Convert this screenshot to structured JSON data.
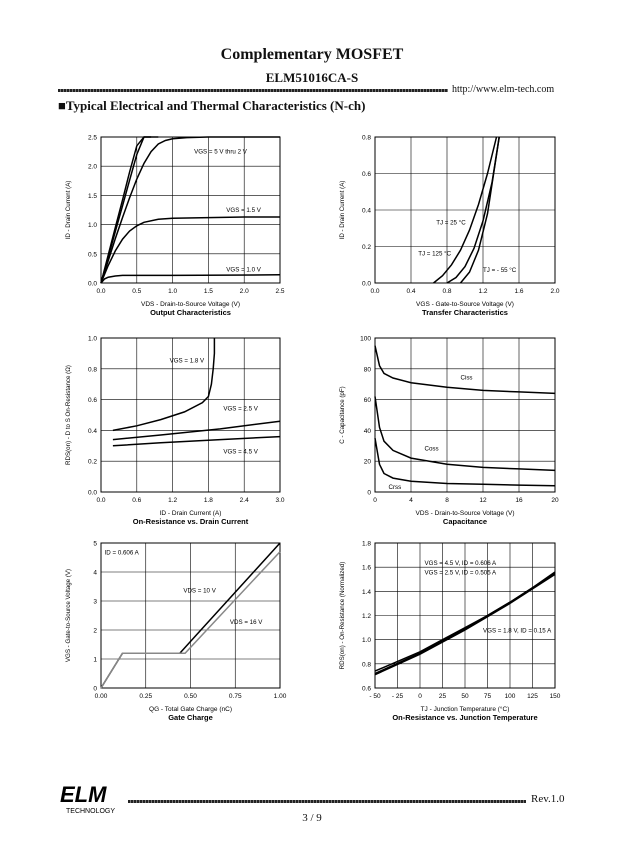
{
  "header": {
    "title": "Complementary MOSFET",
    "part": "ELM51016CA-S",
    "url": "http://www.elm-tech.com"
  },
  "section_title": "■Typical Electrical and Thermal Characteristics (N-ch)",
  "footer": {
    "logo_text": "ELM",
    "logo_sub": "TECHNOLOGY",
    "revision": "Rev.1.0",
    "page": "3 / 9"
  },
  "chart_data": [
    {
      "id": "c1",
      "type": "line",
      "caption": "Output Characteristics",
      "xlabel": "VDS - Drain-to-Source Voltage (V)",
      "ylabel": "ID - Drain Current (A)",
      "xlim": [
        0,
        2.5
      ],
      "ylim": [
        0,
        2.5
      ],
      "xticks": [
        "0.0",
        "0.5",
        "1.0",
        "1.5",
        "2.0",
        "2.5"
      ],
      "yticks": [
        "0.0",
        "0.5",
        "1.0",
        "1.5",
        "2.0",
        "2.5"
      ],
      "grid": true,
      "series": [
        {
          "name": "VGS = 5 V thru 2 V",
          "x": [
            0,
            0.1,
            0.2,
            0.3,
            0.4,
            0.5,
            0.6,
            0.8
          ],
          "y": [
            0,
            0.48,
            0.95,
            1.42,
            1.9,
            2.35,
            2.5,
            2.5
          ]
        },
        {
          "name": "",
          "x": [
            0,
            0.1,
            0.2,
            0.3,
            0.4,
            0.5,
            0.6,
            0.7
          ],
          "y": [
            0,
            0.44,
            0.88,
            1.32,
            1.76,
            2.2,
            2.5,
            2.5
          ]
        },
        {
          "name": "",
          "x": [
            0,
            0.1,
            0.2,
            0.3,
            0.4,
            0.5,
            0.6,
            0.7,
            0.8,
            0.9,
            1.0,
            1.2,
            1.5,
            2.5
          ],
          "y": [
            0,
            0.38,
            0.76,
            1.12,
            1.46,
            1.78,
            2.05,
            2.25,
            2.38,
            2.44,
            2.47,
            2.49,
            2.5,
            2.5
          ]
        },
        {
          "name": "VGS = 1.5 V",
          "x": [
            0,
            0.1,
            0.2,
            0.3,
            0.4,
            0.5,
            0.6,
            0.8,
            1.0,
            1.5,
            2.0,
            2.5
          ],
          "y": [
            0,
            0.3,
            0.55,
            0.75,
            0.89,
            0.98,
            1.04,
            1.09,
            1.11,
            1.12,
            1.13,
            1.13
          ]
        },
        {
          "name": "VGS = 1.0 V",
          "x": [
            0,
            0.05,
            0.1,
            0.2,
            0.3,
            0.5,
            1.0,
            2.5
          ],
          "y": [
            0,
            0.07,
            0.1,
            0.12,
            0.13,
            0.13,
            0.13,
            0.14
          ]
        }
      ],
      "labels": [
        {
          "text": "VGS = 5 V thru 2 V",
          "x": 1.3,
          "y": 2.22
        },
        {
          "text": "VGS = 1.5 V",
          "x": 1.75,
          "y": 1.22
        },
        {
          "text": "VGS = 1.0 V",
          "x": 1.75,
          "y": 0.2
        }
      ]
    },
    {
      "id": "c2",
      "type": "line",
      "caption": "Transfer Characteristics",
      "xlabel": "VGS - Gate-to-Source Voltage (V)",
      "ylabel": "ID - Drain Current (A)",
      "xlim": [
        0,
        2.0
      ],
      "ylim": [
        0,
        0.8
      ],
      "xticks": [
        "0.0",
        "0.4",
        "0.8",
        "1.2",
        "1.6",
        "2.0"
      ],
      "yticks": [
        "0.0",
        "0.2",
        "0.4",
        "0.6",
        "0.8"
      ],
      "grid": true,
      "series": [
        {
          "name": "TJ = 25 °C",
          "x": [
            0.8,
            0.9,
            1.0,
            1.1,
            1.2,
            1.3,
            1.38
          ],
          "y": [
            0,
            0.03,
            0.09,
            0.19,
            0.34,
            0.55,
            0.8
          ]
        },
        {
          "name": "TJ = 125 °C",
          "x": [
            0.65,
            0.75,
            0.85,
            0.95,
            1.05,
            1.15,
            1.25,
            1.35
          ],
          "y": [
            0,
            0.04,
            0.1,
            0.18,
            0.29,
            0.43,
            0.6,
            0.8
          ]
        },
        {
          "name": "TJ = - 55 °C",
          "x": [
            0.95,
            1.05,
            1.15,
            1.25,
            1.38
          ],
          "y": [
            0,
            0.06,
            0.18,
            0.38,
            0.8
          ]
        }
      ],
      "labels": [
        {
          "text": "TJ = 25 °C",
          "x": 0.68,
          "y": 0.32
        },
        {
          "text": "TJ = 125 °C",
          "x": 0.48,
          "y": 0.15
        },
        {
          "text": "TJ = - 55 °C",
          "x": 1.2,
          "y": 0.06
        }
      ]
    },
    {
      "id": "c3",
      "type": "line",
      "caption": "On-Resistance vs. Drain Current",
      "xlabel": "ID - Drain Current (A)",
      "ylabel": "RDS(on) - D to S On-Resistance (Ω)",
      "xlim": [
        0,
        3.0
      ],
      "ylim": [
        0,
        1.0
      ],
      "xticks": [
        "0.0",
        "0.6",
        "1.2",
        "1.8",
        "2.4",
        "3.0"
      ],
      "yticks": [
        "0.0",
        "0.2",
        "0.4",
        "0.6",
        "0.8",
        "1.0"
      ],
      "grid": true,
      "series": [
        {
          "name": "VGS = 1.8 V",
          "x": [
            0.2,
            0.6,
            1.0,
            1.4,
            1.7,
            1.8,
            1.85,
            1.88,
            1.9,
            1.9
          ],
          "y": [
            0.4,
            0.43,
            0.47,
            0.52,
            0.58,
            0.62,
            0.7,
            0.8,
            0.9,
            1.0
          ]
        },
        {
          "name": "VGS = 2.5 V",
          "x": [
            0.2,
            1.0,
            2.0,
            3.0
          ],
          "y": [
            0.34,
            0.37,
            0.41,
            0.46
          ]
        },
        {
          "name": "VGS = 4.5 V",
          "x": [
            0.2,
            1.0,
            2.0,
            3.0
          ],
          "y": [
            0.3,
            0.32,
            0.34,
            0.36
          ]
        }
      ],
      "labels": [
        {
          "text": "VGS = 1.8 V",
          "x": 1.15,
          "y": 0.84
        },
        {
          "text": "VGS = 2.5 V",
          "x": 2.05,
          "y": 0.53
        },
        {
          "text": "VGS = 4.5 V",
          "x": 2.05,
          "y": 0.25
        }
      ]
    },
    {
      "id": "c4",
      "type": "line",
      "caption": "Capacitance",
      "xlabel": "VDS - Drain-to-Source Voltage (V)",
      "ylabel": "C - Capacitance (pF)",
      "xlim": [
        0,
        20
      ],
      "ylim": [
        0,
        100
      ],
      "xticks": [
        "0",
        "4",
        "8",
        "12",
        "16",
        "20"
      ],
      "yticks": [
        "0",
        "20",
        "40",
        "60",
        "80",
        "100"
      ],
      "grid": true,
      "series": [
        {
          "name": "Ciss",
          "x": [
            0,
            0.5,
            1,
            2,
            4,
            8,
            12,
            16,
            20
          ],
          "y": [
            95,
            82,
            77,
            74,
            71,
            68,
            66,
            65,
            64
          ]
        },
        {
          "name": "Coss",
          "x": [
            0,
            0.5,
            1,
            2,
            4,
            8,
            12,
            16,
            20
          ],
          "y": [
            62,
            42,
            33,
            27,
            22,
            18,
            16,
            15,
            14
          ]
        },
        {
          "name": "Crss",
          "x": [
            0,
            0.5,
            1,
            2,
            4,
            8,
            12,
            16,
            20
          ],
          "y": [
            35,
            18,
            12,
            9,
            7,
            5.5,
            5,
            4.5,
            4
          ]
        }
      ],
      "labels": [
        {
          "text": "Ciss",
          "x": 9.5,
          "y": 73
        },
        {
          "text": "Coss",
          "x": 5.5,
          "y": 27
        },
        {
          "text": "Crss",
          "x": 1.5,
          "y": 2
        }
      ]
    },
    {
      "id": "c5",
      "type": "line",
      "caption": "Gate Charge",
      "xlabel": "QG - Total Gate Charge (nC)",
      "ylabel": "VGS - Gate-to-Source Voltage (V)",
      "xlim": [
        0,
        1.0
      ],
      "ylim": [
        0,
        5
      ],
      "xticks": [
        "0.00",
        "0.25",
        "0.50",
        "0.75",
        "1.00"
      ],
      "yticks": [
        "0",
        "1",
        "2",
        "3",
        "4",
        "5"
      ],
      "grid": true,
      "series": [
        {
          "name": "VDS = 10 V",
          "color": "#000000",
          "x": [
            0,
            0.12,
            0.44,
            1.0
          ],
          "y": [
            0,
            1.2,
            1.2,
            5.0
          ]
        },
        {
          "name": "VDS = 16 V",
          "color": "#888888",
          "x": [
            0,
            0.12,
            0.47,
            1.0
          ],
          "y": [
            0,
            1.2,
            1.2,
            4.7
          ]
        }
      ],
      "labels": [
        {
          "text": "ID = 0.606 A",
          "x": 0.02,
          "y": 4.6
        },
        {
          "text": "VDS = 10 V",
          "x": 0.46,
          "y": 3.3
        },
        {
          "text": "VDS = 16 V",
          "x": 0.72,
          "y": 2.2
        }
      ]
    },
    {
      "id": "c6",
      "type": "line",
      "caption": "On-Resistance vs. Junction Temperature",
      "xlabel": "TJ - Junction Temperature (°C)",
      "ylabel": "RDS(on) - On-Resistance (Normalized)",
      "xlim": [
        -50,
        150
      ],
      "ylim": [
        0.6,
        1.8
      ],
      "xticks": [
        "- 50",
        "- 25",
        "0",
        "25",
        "50",
        "75",
        "100",
        "125",
        "150"
      ],
      "yticks": [
        "0.6",
        "0.8",
        "1.0",
        "1.2",
        "1.4",
        "1.6",
        "1.8"
      ],
      "grid": true,
      "series": [
        {
          "name": "VGS = 4.5 V, ID = 0.606 A",
          "x": [
            -50,
            0,
            25,
            50,
            75,
            100,
            125,
            150
          ],
          "y": [
            0.74,
            0.9,
            1.0,
            1.1,
            1.2,
            1.31,
            1.43,
            1.55
          ]
        },
        {
          "name": "VGS = 2.5 V, ID = 0.505 A",
          "x": [
            -50,
            0,
            25,
            50,
            75,
            100,
            125,
            150
          ],
          "y": [
            0.72,
            0.89,
            0.99,
            1.09,
            1.2,
            1.31,
            1.43,
            1.56
          ]
        },
        {
          "name": "VGS = 1.8 V, ID = 0.15 A",
          "x": [
            -50,
            0,
            25,
            50,
            75,
            100,
            125,
            150
          ],
          "y": [
            0.71,
            0.88,
            0.98,
            1.08,
            1.19,
            1.3,
            1.42,
            1.54
          ]
        }
      ],
      "labels": [
        {
          "text": "VGS = 4.5 V, ID = 0.606 A",
          "x": 5,
          "y": 1.62
        },
        {
          "text": "VGS = 2.5 V, ID = 0.505 A",
          "x": 5,
          "y": 1.54
        },
        {
          "text": "VGS = 1.8 V, ID = 0.15 A",
          "x": 70,
          "y": 1.06
        }
      ]
    }
  ]
}
